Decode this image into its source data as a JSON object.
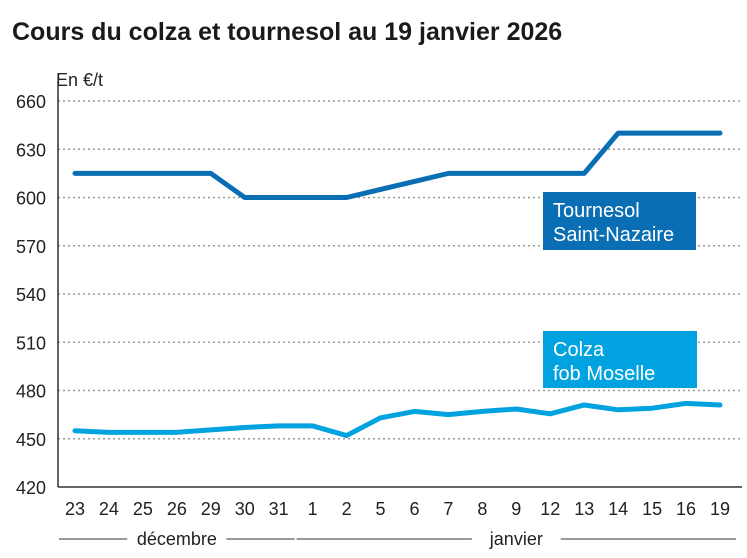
{
  "chart_data": {
    "type": "line",
    "title": "Cours du colza et tournesol au 19 janvier 2026",
    "ylabel": "En €/t",
    "ylim": [
      420,
      660
    ],
    "yticks": [
      420,
      450,
      480,
      510,
      540,
      570,
      600,
      630,
      660
    ],
    "grid": true,
    "categories": [
      "23",
      "24",
      "25",
      "26",
      "29",
      "30",
      "31",
      "1",
      "2",
      "5",
      "6",
      "7",
      "8",
      "9",
      "12",
      "13",
      "14",
      "15",
      "16",
      "19"
    ],
    "month_groups": [
      {
        "label": "décembre",
        "from": 0,
        "to": 6
      },
      {
        "label": "janvier",
        "from": 7,
        "to": 19
      }
    ],
    "series": [
      {
        "name": "Tournesol Saint-Nazaire",
        "label_lines": [
          "Tournesol",
          "Saint-Nazaire"
        ],
        "color": "#0a6eb4",
        "values": [
          615,
          615,
          615,
          615,
          615,
          600,
          600,
          600,
          600,
          605,
          610,
          615,
          615,
          615,
          615,
          615,
          640,
          640,
          640,
          640
        ]
      },
      {
        "name": "Colza fob Moselle",
        "label_lines": [
          "Colza",
          "fob Moselle"
        ],
        "color": "#00a3e0",
        "values": [
          455,
          454,
          454,
          454,
          455.5,
          457,
          458,
          458,
          452,
          463,
          467,
          465,
          467,
          468.5,
          465.5,
          471,
          468,
          469,
          472,
          471
        ]
      }
    ]
  }
}
